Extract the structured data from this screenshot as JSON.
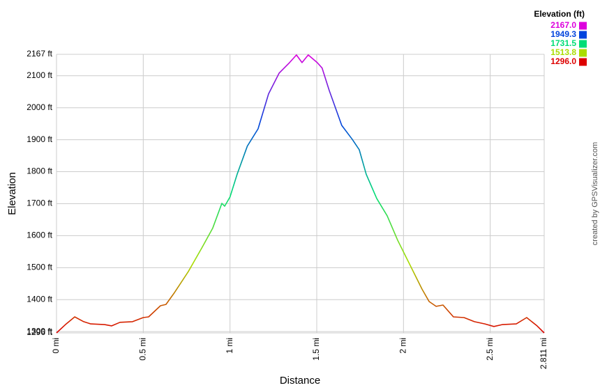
{
  "chart_data": {
    "type": "line",
    "x_label": "Distance",
    "y_label": "Elevation",
    "credit": "created by GPSVisualizer.com",
    "legend_title": "Elevation (ft)",
    "color_scale": [
      {
        "value": 2167,
        "label": "2167.0",
        "color": "#dd00dd"
      },
      {
        "value": 1949.3,
        "label": "1949.3",
        "color": "#0044dd"
      },
      {
        "value": 1731.5,
        "label": "1731.5",
        "color": "#00dd77"
      },
      {
        "value": 1513.8,
        "label": "1513.8",
        "color": "#aadd00"
      },
      {
        "value": 1296,
        "label": "1296.0",
        "color": "#dd0000"
      }
    ],
    "x": [
      0,
      0.056,
      0.105,
      0.157,
      0.197,
      0.277,
      0.318,
      0.366,
      0.438,
      0.5,
      0.531,
      0.599,
      0.631,
      0.68,
      0.76,
      0.84,
      0.9,
      0.953,
      0.969,
      1.0,
      1.041,
      1.1,
      1.162,
      1.222,
      1.283,
      1.343,
      1.383,
      1.415,
      1.451,
      1.503,
      1.531,
      1.572,
      1.644,
      1.705,
      1.745,
      1.785,
      1.846,
      1.906,
      1.966,
      2.027,
      2.107,
      2.148,
      2.188,
      2.228,
      2.288,
      2.349,
      2.409,
      2.469,
      2.521,
      2.569,
      2.65,
      2.71,
      2.77,
      2.811
    ],
    "values": [
      1296,
      1324,
      1346,
      1331,
      1324,
      1322,
      1318,
      1329,
      1331,
      1344,
      1346,
      1381,
      1385,
      1422,
      1488,
      1564,
      1623,
      1701,
      1692,
      1721,
      1792,
      1880,
      1934,
      2043,
      2108,
      2141,
      2165,
      2141,
      2165,
      2141,
      2124,
      2054,
      1945,
      1901,
      1869,
      1792,
      1716,
      1662,
      1586,
      1520,
      1433,
      1394,
      1379,
      1383,
      1346,
      1344,
      1331,
      1324,
      1316,
      1322,
      1324,
      1344,
      1318,
      1296
    ],
    "xlim": [
      0,
      2.811
    ],
    "ylim": [
      1296,
      2167
    ],
    "xticks": [
      {
        "value": 0,
        "label": "0 mi"
      },
      {
        "value": 0.5,
        "label": "0.5 mi"
      },
      {
        "value": 1,
        "label": "1 mi"
      },
      {
        "value": 1.5,
        "label": "1.5 mi"
      },
      {
        "value": 2,
        "label": "2 mi"
      },
      {
        "value": 2.5,
        "label": "2.5 mi"
      },
      {
        "value": 2.811,
        "label": "2.811 mi"
      }
    ],
    "yticks": [
      {
        "value": 1296,
        "label": "1296 ft"
      },
      {
        "value": 1300,
        "label": "1300 ft"
      },
      {
        "value": 1400,
        "label": "1400 ft"
      },
      {
        "value": 1500,
        "label": "1500 ft"
      },
      {
        "value": 1600,
        "label": "1600 ft"
      },
      {
        "value": 1700,
        "label": "1700 ft"
      },
      {
        "value": 1800,
        "label": "1800 ft"
      },
      {
        "value": 1900,
        "label": "1900 ft"
      },
      {
        "value": 2000,
        "label": "2000 ft"
      },
      {
        "value": 2100,
        "label": "2100 ft"
      },
      {
        "value": 2167,
        "label": "2167 ft"
      }
    ],
    "grid": true
  }
}
